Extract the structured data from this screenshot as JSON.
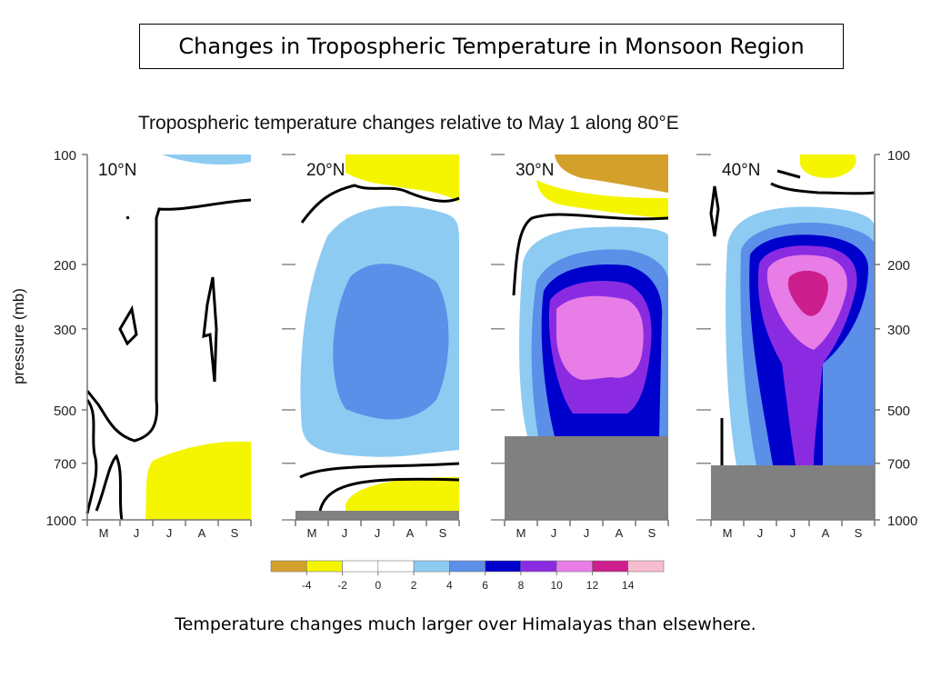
{
  "slide": {
    "title": "Changes in Tropospheric Temperature in Monsoon Region",
    "caption": "Temperature changes much larger over Himalayas than elsewhere."
  },
  "chart_data": {
    "type": "heatmap",
    "title": "Tropospheric temperature changes relative to May 1 along 80°E",
    "ylabel": "pressure (mb)",
    "y_ticks": [
      100,
      200,
      300,
      500,
      700,
      1000
    ],
    "y_scale": "log",
    "y_reversed": true,
    "x_ticks": [
      "M",
      "J",
      "J",
      "A",
      "S"
    ],
    "panels": [
      {
        "label": "10°N",
        "surface_pressure": 1000,
        "max_change": 2
      },
      {
        "label": "20°N",
        "surface_pressure": 1000,
        "max_change": 6
      },
      {
        "label": "30°N",
        "surface_pressure": 600,
        "max_change": 12
      },
      {
        "label": "40°N",
        "surface_pressure": 710,
        "max_change": 14
      }
    ],
    "colorbar": {
      "ticks": [
        "-4",
        "-2",
        "0",
        "2",
        "4",
        "6",
        "8",
        "10",
        "12",
        "14"
      ],
      "colors": [
        "#d4a02c",
        "#f5f500",
        "#ffffff",
        "#ffffff",
        "#8ecbf2",
        "#5b8fe8",
        "#0000cc",
        "#8a2be2",
        "#e87de8",
        "#cc1e8c",
        "#f8bcd0"
      ]
    },
    "colors": {
      "surface": "#808080",
      "contour": "#000000",
      "c_neg4": "#d4a02c",
      "c_neg2": "#f5f500",
      "c_2": "#8ecbf2",
      "c_4": "#5b8fe8",
      "c_6": "#0000cc",
      "c_8": "#8a2be2",
      "c_10": "#e87de8",
      "c_12": "#cc1e8c"
    }
  }
}
